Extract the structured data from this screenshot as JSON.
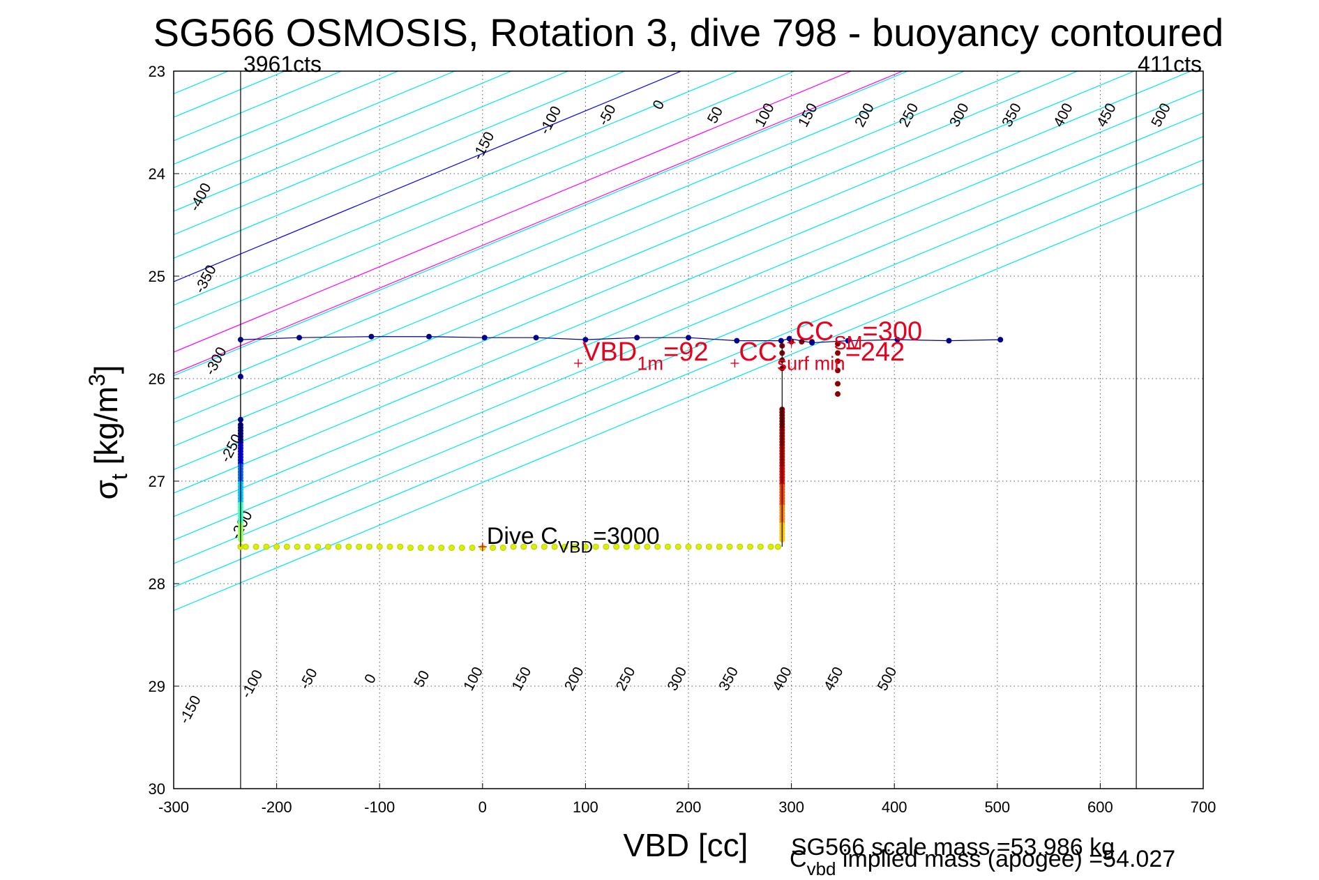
{
  "chart_data": {
    "type": "scatter",
    "title": "SG566 OSMOSIS, Rotation 3, dive 798 - buoyancy contoured",
    "xlabel": "VBD [cc]",
    "ylabel": {
      "base": "σ",
      "sub": "t",
      "main": " [kg/m",
      "sup": "3",
      "close": "]"
    },
    "xlim": [
      -300,
      700
    ],
    "ylim": [
      23,
      30
    ],
    "y_reversed": true,
    "grid": true,
    "x_ticks": [
      -300,
      -200,
      -100,
      0,
      100,
      200,
      300,
      400,
      500,
      600,
      700
    ],
    "y_ticks": [
      23,
      24,
      25,
      26,
      27,
      28,
      29,
      30
    ],
    "vbd_limits": [
      {
        "x": -235,
        "label": "3961cts"
      },
      {
        "x": 635,
        "label": "411cts"
      }
    ],
    "contour_slope": 240,
    "contour_spacing": 50,
    "contour_range": [
      -700,
      700
    ],
    "zero_contour_color": "#0000ff",
    "highlight_contour_color": "#ff00ff",
    "default_contour_color": "#00e5ee",
    "highlight_contours": [
      {
        "value": 150,
        "x_at_ymin": 282
      },
      {
        "value": 150,
        "x_at_ymin": 282
      }
    ],
    "contour_sets": [
      {
        "name": "upper",
        "zero_x_at_23": 193,
        "labels": [
          -400,
          -350,
          -300,
          -250,
          -200,
          -150,
          -100,
          -50,
          0,
          50,
          100,
          150,
          200,
          250,
          300,
          350,
          400,
          450,
          500
        ],
        "label_points": [
          {
            "v": -400,
            "x": -270,
            "y": 24.25
          },
          {
            "v": -350,
            "x": -265,
            "y": 25.05
          },
          {
            "v": -300,
            "x": -255,
            "y": 25.85
          },
          {
            "v": -250,
            "x": -240,
            "y": 26.7
          },
          {
            "v": -200,
            "x": -230,
            "y": 27.45
          },
          {
            "v": -150,
            "x": 5,
            "y": 23.75
          },
          {
            "v": -100,
            "x": 70,
            "y": 23.5
          },
          {
            "v": -50,
            "x": 125,
            "y": 23.45
          },
          {
            "v": 0,
            "x": 175,
            "y": 23.35
          },
          {
            "v": 50,
            "x": 230,
            "y": 23.45
          },
          {
            "v": 100,
            "x": 278,
            "y": 23.45
          },
          {
            "v": 150,
            "x": 320,
            "y": 23.45
          },
          {
            "v": 200,
            "x": 375,
            "y": 23.45
          },
          {
            "v": 250,
            "x": 418,
            "y": 23.45
          },
          {
            "v": 300,
            "x": 467,
            "y": 23.45
          },
          {
            "v": 350,
            "x": 518,
            "y": 23.45
          },
          {
            "v": 400,
            "x": 568,
            "y": 23.45
          },
          {
            "v": 450,
            "x": 610,
            "y": 23.45
          },
          {
            "v": 500,
            "x": 663,
            "y": 23.45
          }
        ]
      },
      {
        "name": "lower",
        "label_points": [
          {
            "v": -150,
            "x": -280,
            "y": 29.25
          },
          {
            "v": -100,
            "x": -220,
            "y": 29.0
          },
          {
            "v": -50,
            "x": -165,
            "y": 28.95
          },
          {
            "v": 0,
            "x": -105,
            "y": 28.95
          },
          {
            "v": 50,
            "x": -55,
            "y": 28.95
          },
          {
            "v": 100,
            "x": -5,
            "y": 28.95
          },
          {
            "v": 150,
            "x": 42,
            "y": 28.95
          },
          {
            "v": 200,
            "x": 93,
            "y": 28.95
          },
          {
            "v": 250,
            "x": 143,
            "y": 28.95
          },
          {
            "v": 300,
            "x": 193,
            "y": 28.95
          },
          {
            "v": 350,
            "x": 243,
            "y": 28.95
          },
          {
            "v": 400,
            "x": 295,
            "y": 28.95
          },
          {
            "v": 450,
            "x": 345,
            "y": 28.95
          },
          {
            "v": 500,
            "x": 397,
            "y": 28.95
          }
        ]
      }
    ],
    "surface_line": {
      "color": "#000080",
      "x": [
        -235,
        -178,
        -108,
        -52,
        2,
        52,
        100,
        150,
        200,
        247,
        290,
        298,
        320,
        355,
        403,
        453,
        503
      ],
      "y": [
        25.62,
        25.6,
        25.59,
        25.59,
        25.6,
        25.6,
        25.62,
        25.6,
        25.6,
        25.63,
        25.63,
        25.61,
        25.65,
        25.63,
        25.62,
        25.63,
        25.62
      ]
    },
    "descent_points": {
      "x": [
        -235,
        -230,
        -220,
        -210,
        -200,
        -190,
        -180,
        -170,
        -160,
        -150,
        -140,
        -130,
        -120,
        -110,
        -100,
        -90,
        -80,
        -70,
        -60,
        -50,
        -40,
        -30,
        -20,
        -10,
        0,
        10,
        20,
        30,
        40,
        50,
        60,
        70,
        80,
        90,
        100,
        110,
        120,
        130,
        140,
        150,
        160,
        170,
        180,
        190,
        200,
        210,
        220,
        230,
        240,
        250,
        260,
        270,
        280,
        287
      ],
      "y": [
        27.64,
        27.64,
        27.64,
        27.64,
        27.64,
        27.64,
        27.64,
        27.64,
        27.64,
        27.64,
        27.64,
        27.64,
        27.64,
        27.64,
        27.64,
        27.64,
        27.64,
        27.65,
        27.65,
        27.65,
        27.65,
        27.65,
        27.65,
        27.65,
        27.65,
        27.65,
        27.65,
        27.64,
        27.64,
        27.64,
        27.64,
        27.64,
        27.64,
        27.64,
        27.64,
        27.64,
        27.64,
        27.64,
        27.64,
        27.64,
        27.64,
        27.64,
        27.64,
        27.64,
        27.64,
        27.64,
        27.64,
        27.64,
        27.64,
        27.64,
        27.64,
        27.64,
        27.64,
        27.64
      ]
    },
    "annotations": {
      "vbd1m": {
        "x": 93,
        "y": 25.85,
        "base": "VBD",
        "sub": "1m",
        "tail": "=92"
      },
      "ccsurf": {
        "x": 245,
        "y": 25.85,
        "base": "CC",
        "sub": "surf min",
        "tail": "=242"
      },
      "ccsm": {
        "x": 300,
        "y": 25.65,
        "base": "CC",
        "sub": "SM",
        "tail": "=300"
      },
      "dive_cvbd": {
        "x": 0,
        "y": 27.64,
        "base": "Dive C",
        "sub": "VBD",
        "tail": "=3000"
      }
    },
    "footer": {
      "scale_mass": "SG566 scale mass =53.986 kg",
      "implied_prefix": "C",
      "implied_sub": "vbd",
      "implied_rest": " implied mass (apogee) =54.027"
    }
  }
}
